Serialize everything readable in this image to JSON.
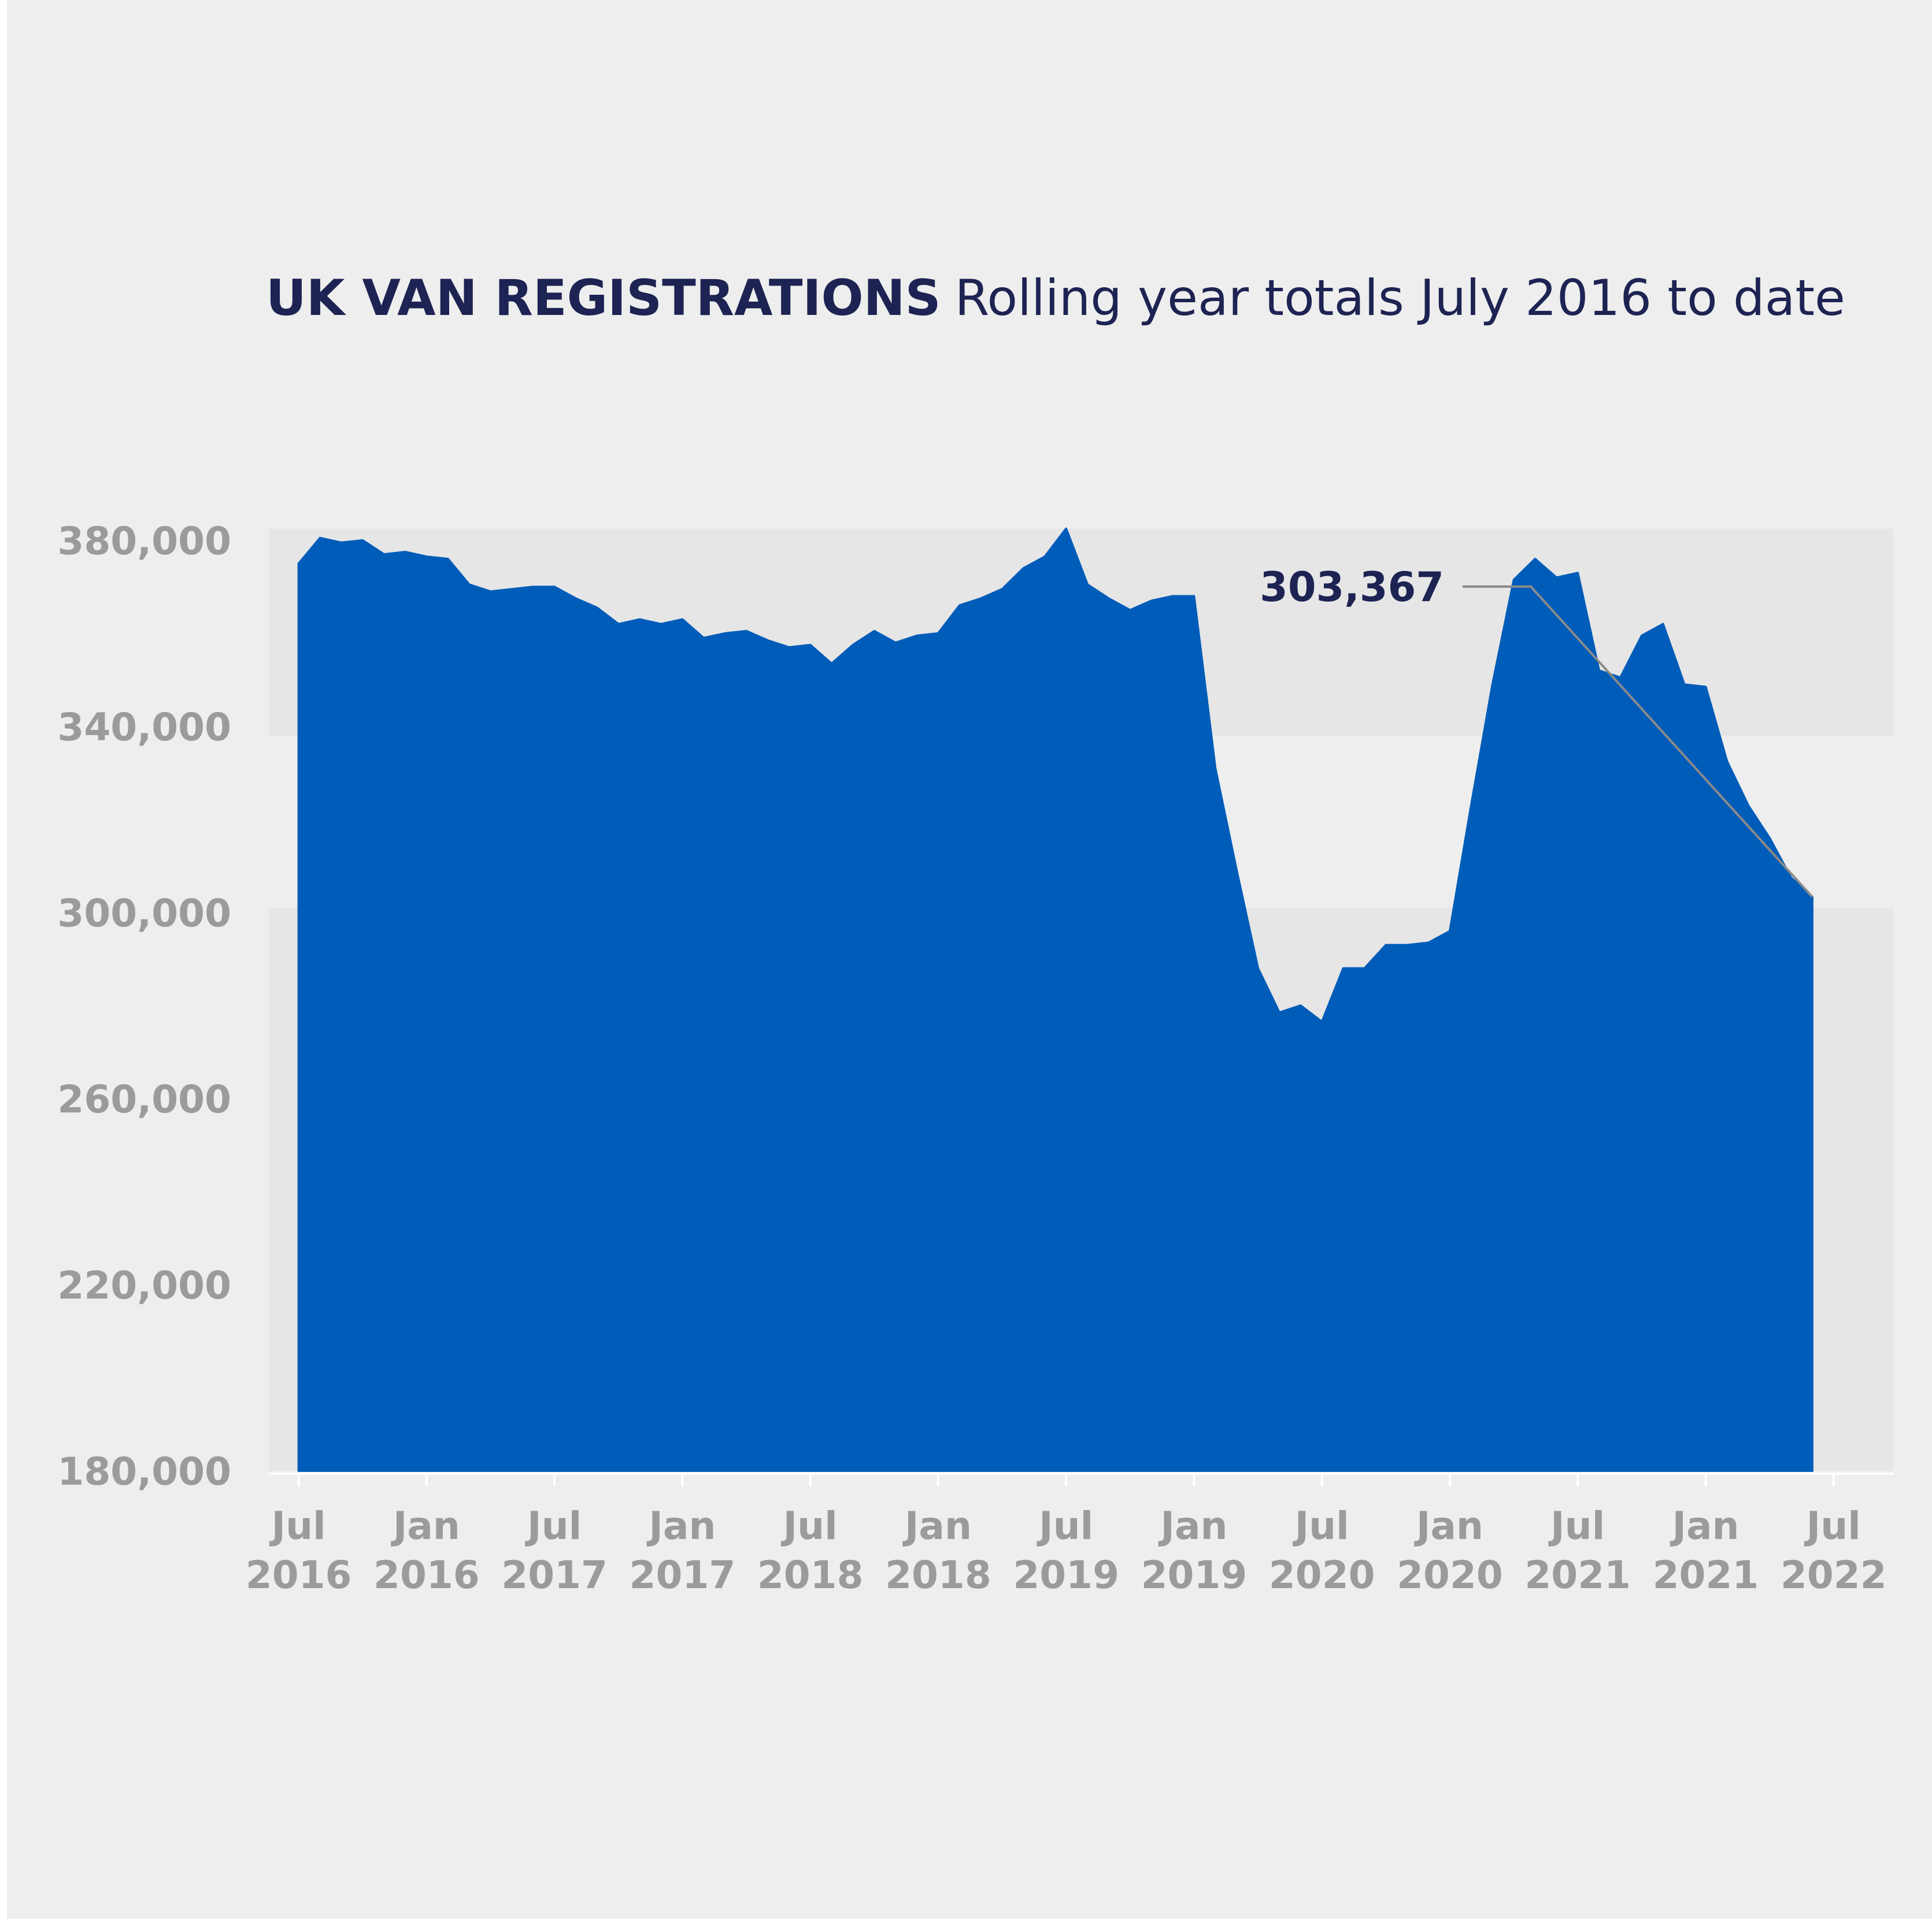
{
  "colors": {
    "background": "#eeeeee",
    "band": "#e6e6e6",
    "area_fill": "#005cb9",
    "title": "#1d2352",
    "tick_text": "#9b9b9b",
    "annotation_line": "#8a8a8a"
  },
  "chart_data": {
    "type": "area",
    "title": "UK VAN REGISTRATIONS",
    "subtitle": "Rolling year totals July 2016 to date",
    "xlabel": "",
    "ylabel": "",
    "ylim": [
      180000,
      380000
    ],
    "yticks": [
      "180,000",
      "220,000",
      "260,000",
      "300,000",
      "340,000",
      "380,000"
    ],
    "ytick_values": [
      180000,
      220000,
      260000,
      300000,
      340000,
      380000
    ],
    "xticks": [
      {
        "top": "Jul",
        "bottom": "2016"
      },
      {
        "top": "Jan",
        "bottom": "2016"
      },
      {
        "top": "Jul",
        "bottom": "2017"
      },
      {
        "top": "Jan",
        "bottom": "2017"
      },
      {
        "top": "Jul",
        "bottom": "2018"
      },
      {
        "top": "Jan",
        "bottom": "2018"
      },
      {
        "top": "Jul",
        "bottom": "2019"
      },
      {
        "top": "Jan",
        "bottom": "2019"
      },
      {
        "top": "Jul",
        "bottom": "2020"
      },
      {
        "top": "Jan",
        "bottom": "2020"
      },
      {
        "top": "Jul",
        "bottom": "2021"
      },
      {
        "top": "Jan",
        "bottom": "2021"
      },
      {
        "top": "Jul",
        "bottom": "2022"
      }
    ],
    "x_index_range": [
      -1.4,
      74.8
    ],
    "grid": false,
    "bands": [
      {
        "from": 338000,
        "to": 382500
      },
      {
        "from": 180000,
        "to": 301000
      }
    ],
    "series": [
      {
        "values": [
          375000,
          380500,
          379500,
          380000,
          377000,
          377500,
          376500,
          376000,
          370500,
          369000,
          369500,
          370000,
          370000,
          367500,
          365500,
          362000,
          363000,
          362000,
          363000,
          359000,
          360000,
          360500,
          358500,
          357000,
          357500,
          353500,
          357500,
          360500,
          358000,
          359500,
          360000,
          366000,
          367500,
          369500,
          374000,
          376500,
          382500,
          370500,
          367500,
          365000,
          367000,
          368000,
          368000,
          331000,
          309000,
          288000,
          278500,
          280000,
          276500,
          288000,
          288000,
          293000,
          293000,
          293500,
          296000,
          323000,
          349000,
          371500,
          376000,
          372000,
          373000,
          352000,
          350500,
          359500,
          362000,
          349000,
          348500,
          332500,
          323000,
          316000,
          307500,
          303367
        ]
      }
    ],
    "annotation": {
      "label": "303,367",
      "value": 303367
    }
  }
}
